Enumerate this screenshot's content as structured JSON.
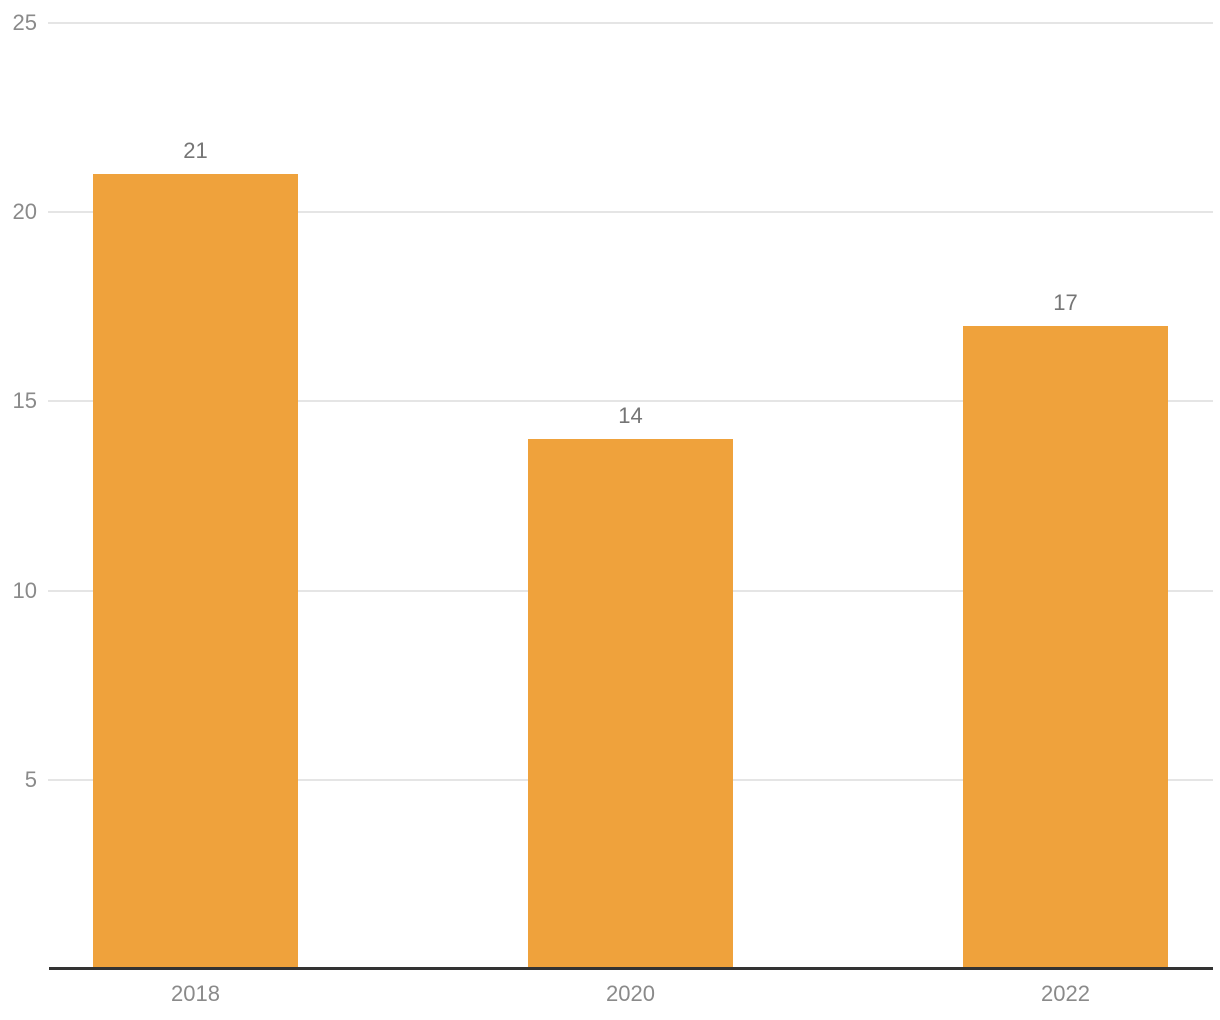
{
  "chart_data": {
    "type": "bar",
    "title": "",
    "xlabel": "",
    "ylabel": "",
    "categories": [
      "2018",
      "2020",
      "2022"
    ],
    "values": [
      21,
      14,
      17
    ],
    "value_labels": [
      "21",
      "14",
      "17"
    ],
    "yticks": [
      5,
      10,
      15,
      20,
      25
    ],
    "ytick_labels": [
      "5",
      "10",
      "15",
      "20",
      "25"
    ],
    "ylim": [
      0,
      25
    ],
    "grid": true,
    "legend": "none",
    "colors": {
      "bar": "#EFA23C",
      "gridline": "#E5E5E5",
      "axis_line": "#333333",
      "tick_label": "#8A8A8A",
      "value_label": "#757575"
    }
  }
}
